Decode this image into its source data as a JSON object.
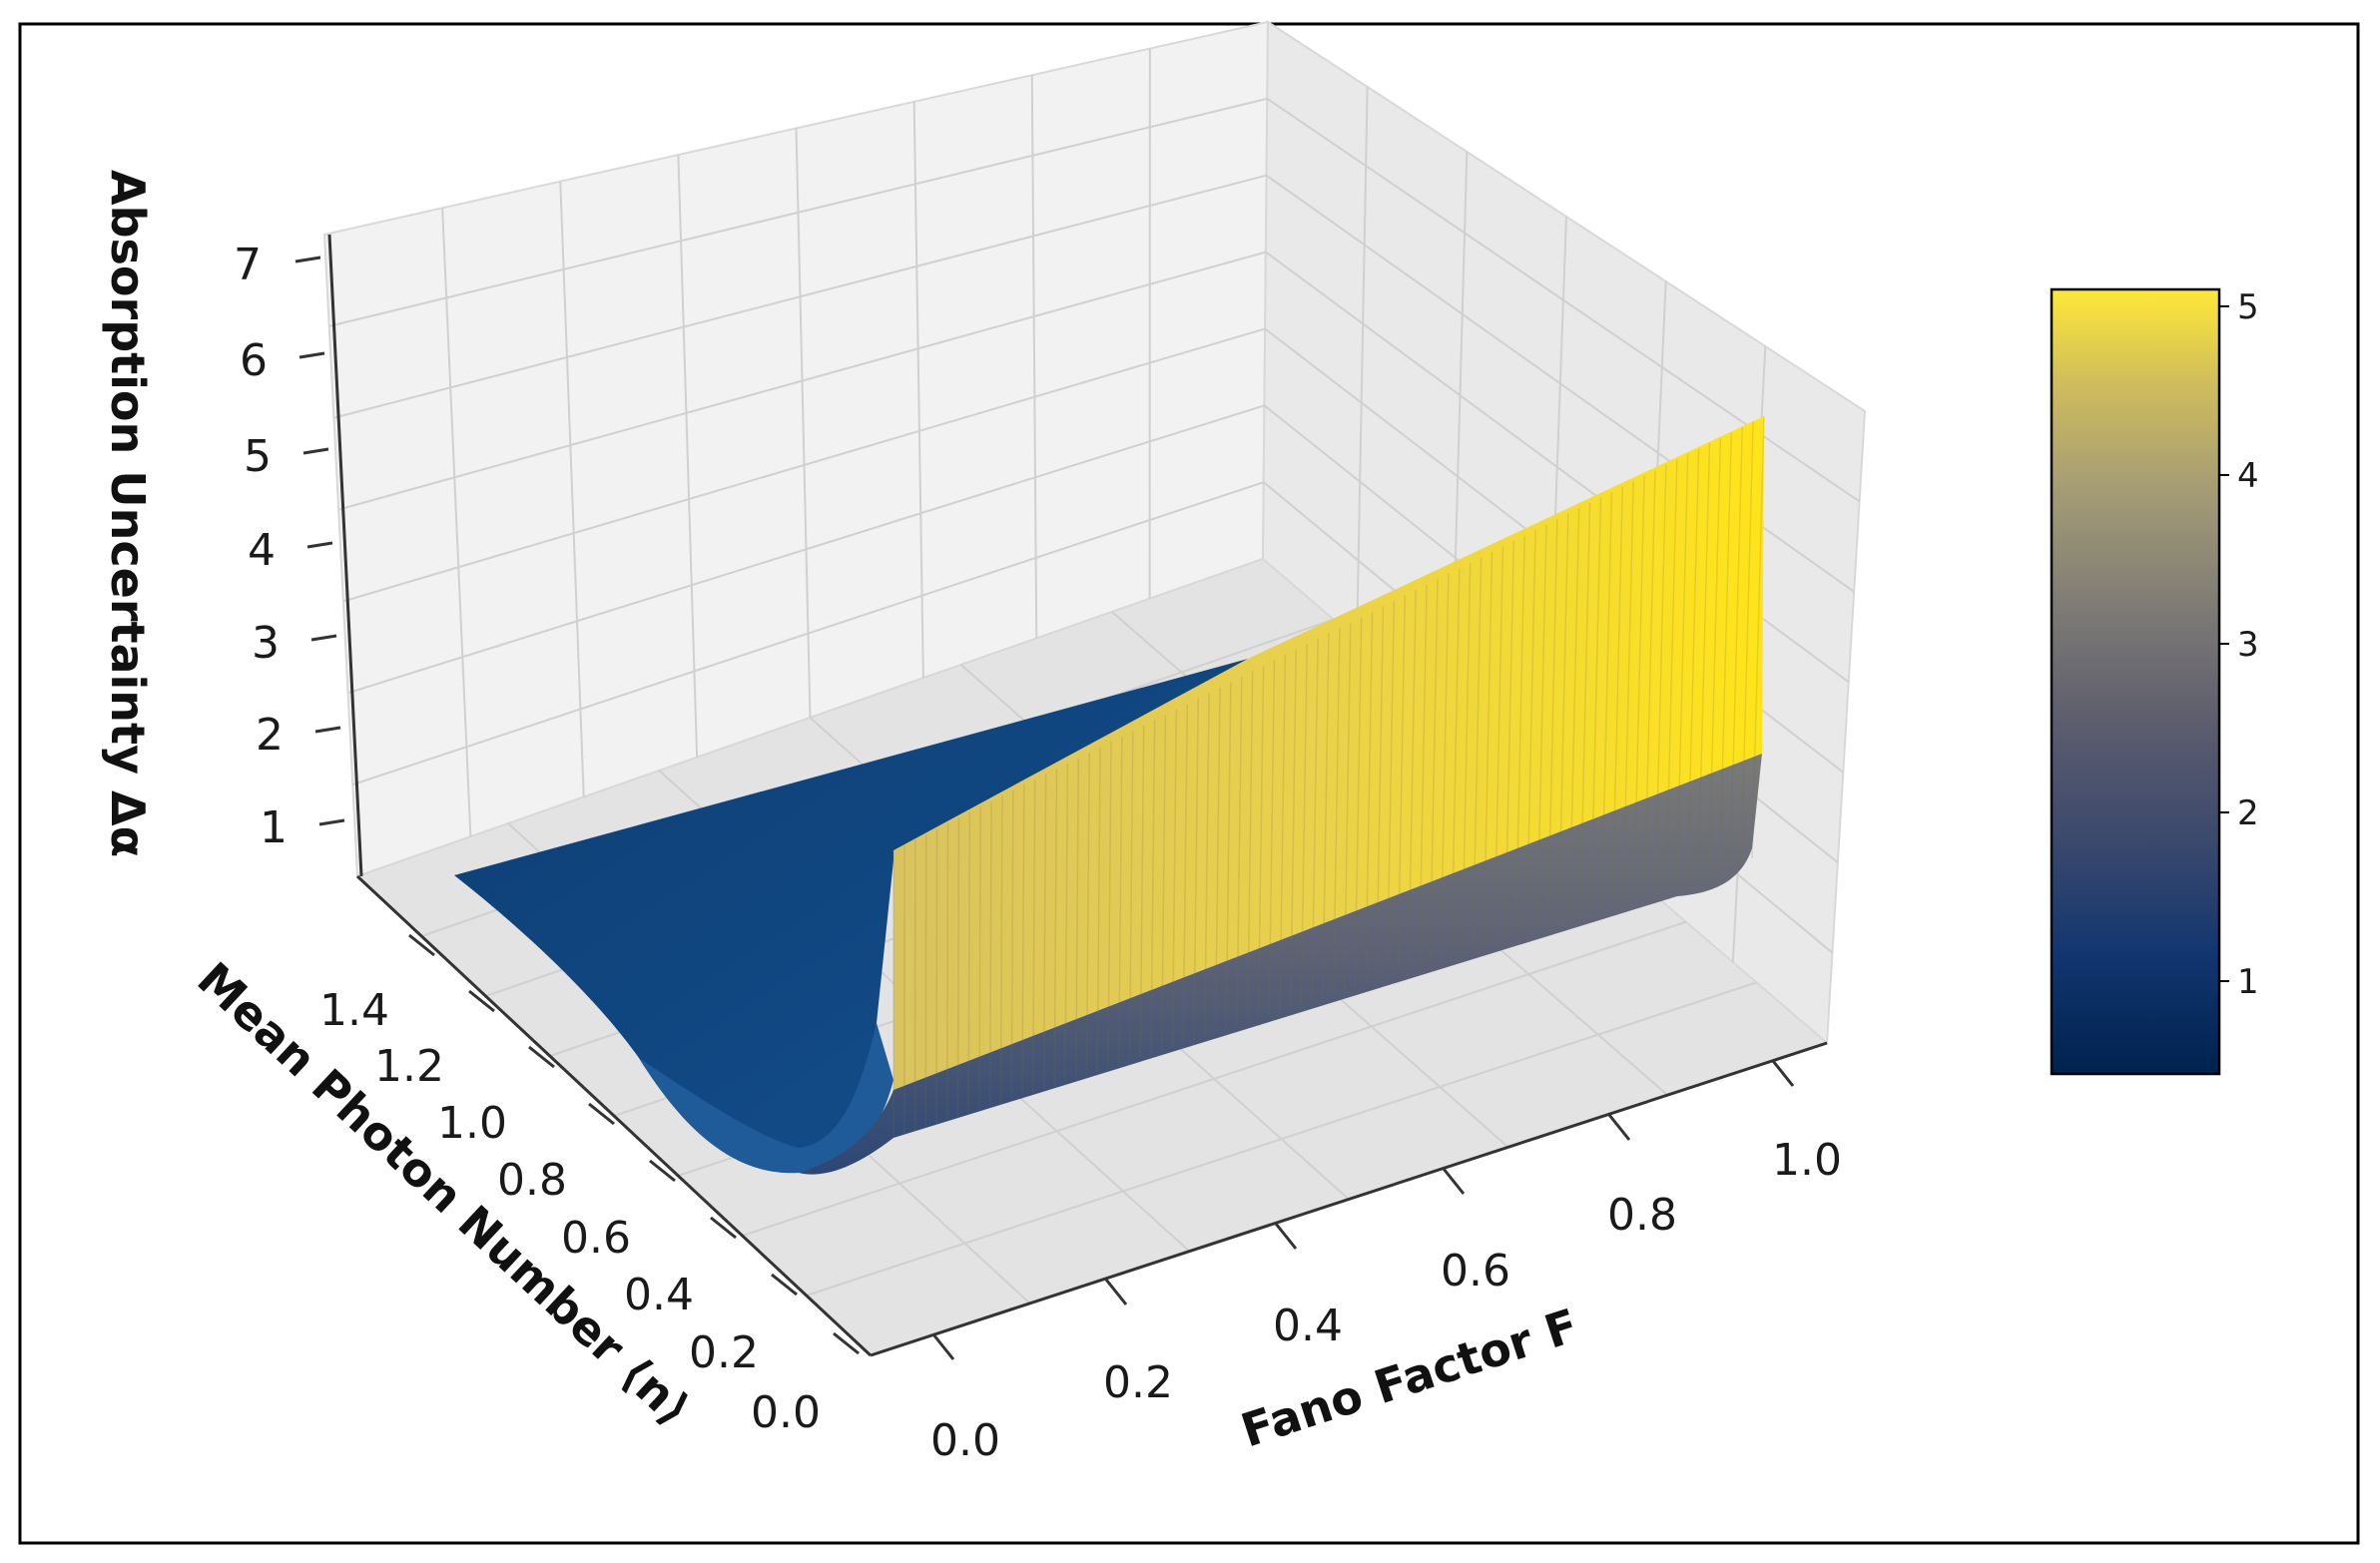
{
  "chart_data": {
    "type": "surface3d",
    "colormap": "cividis",
    "xlabel": "Fano Factor F",
    "ylabel": "Mean Photon Number ⟨n⟩",
    "zlabel": "Absorption Uncertainty Δα",
    "x_ticks": [
      "0.0",
      "0.2",
      "0.4",
      "0.6",
      "0.8",
      "1.0"
    ],
    "y_ticks": [
      "0.0",
      "0.2",
      "0.4",
      "0.6",
      "0.8",
      "1.0",
      "1.2",
      "1.4"
    ],
    "z_ticks": [
      "1",
      "2",
      "3",
      "4",
      "5",
      "6",
      "7"
    ],
    "xlim": [
      0.0,
      1.0
    ],
    "ylim": [
      0.0,
      1.5
    ],
    "zlim": [
      0.4,
      7.0
    ],
    "colorbar": {
      "ticks": [
        "1",
        "2",
        "3",
        "4",
        "5"
      ],
      "range": [
        0.45,
        5.1
      ]
    },
    "surface_profile": {
      "n": [
        0.0,
        0.02,
        0.05,
        0.1,
        0.2,
        0.3,
        0.5,
        0.8,
        1.0,
        1.2,
        1.5
      ],
      "delta_alpha_at_F0": [
        1.3,
        1.1,
        0.95,
        0.82,
        0.72,
        0.66,
        0.6,
        0.56,
        0.55,
        0.55,
        0.55
      ],
      "delta_alpha_at_F1": [
        5.0,
        2.5,
        2.0,
        1.7,
        1.45,
        1.3,
        1.15,
        1.02,
        0.95,
        0.9,
        0.85
      ]
    },
    "grid": true
  }
}
